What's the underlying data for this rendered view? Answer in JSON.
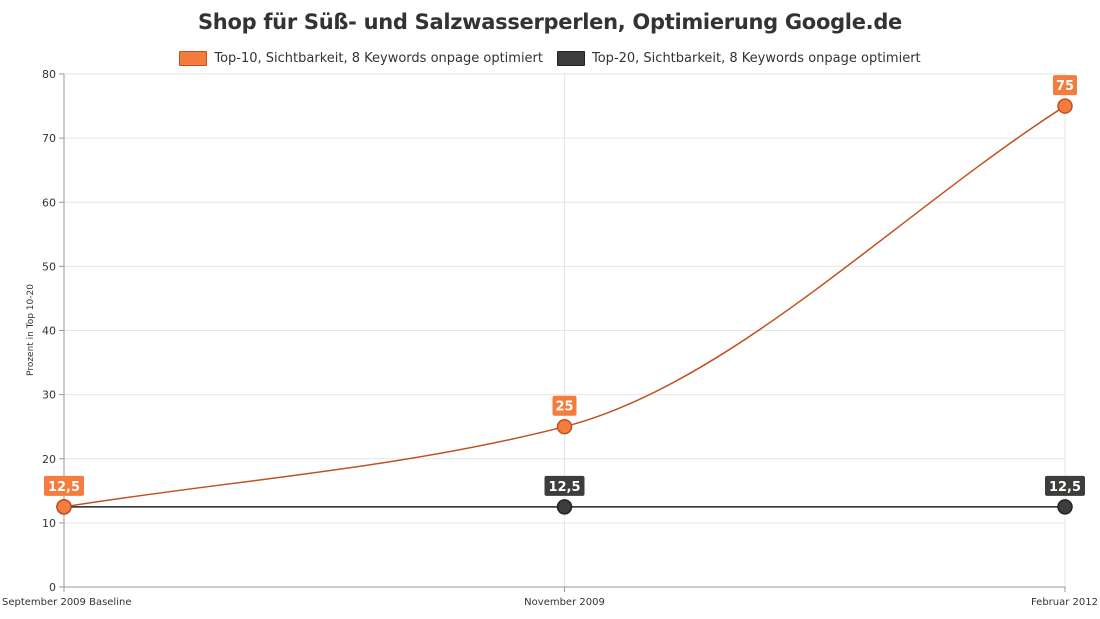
{
  "chart_data": {
    "type": "line",
    "title": "Shop für Süß- und Salzwasserperlen, Optimierung Google.de",
    "xlabel": "",
    "ylabel": "Prozent in Top 10-20",
    "categories": [
      "September 2009 Baseline",
      "November 2009",
      "Februar 2012"
    ],
    "ylim": [
      0,
      80
    ],
    "yticks": [
      0,
      10,
      20,
      30,
      40,
      50,
      60,
      70,
      80
    ],
    "grid": true,
    "legend_position": "top-center",
    "series": [
      {
        "name": "Top-10, Sichtbarkeit, 8 Keywords onpage optimiert",
        "values": [
          12.5,
          25,
          75
        ],
        "labels": [
          "12,5",
          "25",
          "75"
        ],
        "color": "#f47c3c",
        "stroke": "#c0501f"
      },
      {
        "name": "Top-20, Sichtbarkeit, 8 Keywords onpage optimiert",
        "values": [
          12.5,
          12.5,
          12.5
        ],
        "labels": [
          "12,5",
          "12,5",
          "12,5"
        ],
        "color": "#3d3d3b",
        "stroke": "#222222"
      }
    ]
  }
}
